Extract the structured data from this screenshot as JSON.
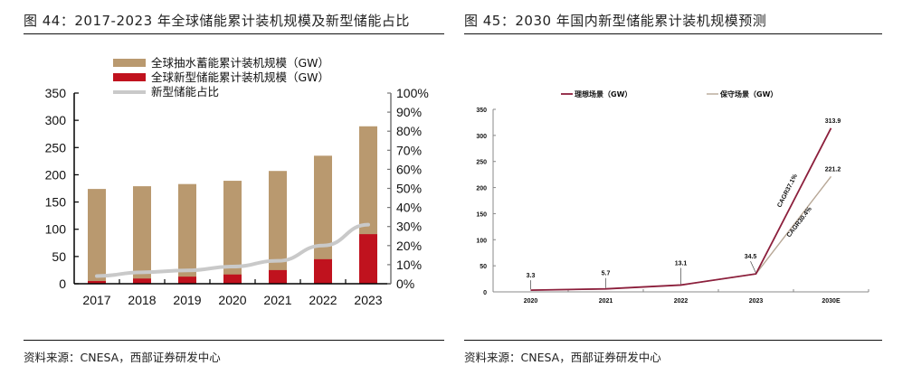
{
  "left_panel": {
    "title": "图 44：2017-2023 年全球储能累计装机规模及新型储能占比",
    "source": "资料来源：CNESA，西部证券研发中心"
  },
  "right_panel": {
    "title": "图 45：2030 年国内新型储能累计装机规模预测",
    "source": "资料来源：CNESA，西部证券研发中心"
  },
  "chart_data": [
    {
      "type": "bar",
      "title": "2017-2023 年全球储能累计装机规模及新型储能占比",
      "categories": [
        "2017",
        "2018",
        "2019",
        "2020",
        "2021",
        "2022",
        "2023"
      ],
      "series": [
        {
          "name": "全球抽水蓄能累计装机规模（GW）",
          "kind": "bar-total",
          "color": "#b9996f",
          "values": [
            174,
            179,
            183,
            189,
            207,
            235,
            289
          ]
        },
        {
          "name": "全球新型储能累计装机规模（GW）",
          "kind": "bar-overlay",
          "color": "#c0121e",
          "values": [
            5,
            9.5,
            13,
            17,
            25,
            45,
            91
          ]
        },
        {
          "name": "新型储能占比",
          "kind": "line",
          "axis": "right",
          "color": "#c9c9c9",
          "values": [
            4,
            6,
            7,
            9,
            12,
            20,
            31
          ]
        }
      ],
      "y_left": {
        "min": 0,
        "max": 350,
        "ticks": [
          "0",
          "50",
          "100",
          "150",
          "200",
          "250",
          "300",
          "350"
        ]
      },
      "y_right": {
        "min": 0,
        "max": 100,
        "ticks": [
          "0%",
          "10%",
          "20%",
          "30%",
          "40%",
          "50%",
          "60%",
          "70%",
          "80%",
          "90%",
          "100%"
        ]
      },
      "legend": "top-center",
      "grid": false
    },
    {
      "type": "line",
      "title": "2030 年国内新型储能累计装机规模预测",
      "categories": [
        "2020",
        "2021",
        "2022",
        "2023",
        "2030E"
      ],
      "series": [
        {
          "name": "理想场景（GW）",
          "color": "#8c1f3c",
          "values": [
            3.3,
            5.7,
            13.1,
            34.5,
            313.9
          ]
        },
        {
          "name": "保守场景（GW）",
          "color": "#b7a796",
          "values": [
            3.3,
            5.7,
            13.1,
            34.5,
            221.2
          ]
        }
      ],
      "data_labels": [
        "3.3",
        "5.7",
        "13.1",
        "34.5",
        "313.9",
        "221.2"
      ],
      "annotations": [
        "CAGR37.1%",
        "CAGR30.4%"
      ],
      "y_axis": {
        "min": 0,
        "max": 350,
        "ticks": [
          "0",
          "50",
          "100",
          "150",
          "200",
          "250",
          "300",
          "350"
        ]
      },
      "legend": "top-center",
      "grid": false
    }
  ]
}
